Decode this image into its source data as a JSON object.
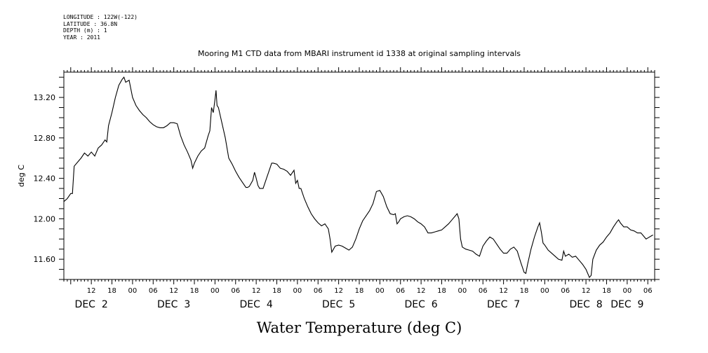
{
  "header": {
    "longitude": "LONGITUDE : 122W(-122)",
    "latitude": "LATITUDE : 36.8N",
    "depth": "DEPTH (m) : 1",
    "year": "YEAR : 2011"
  },
  "chart_data": {
    "type": "line",
    "title": "Mooring M1 CTD data from MBARI instrument id 1338 at original sampling intervals",
    "xlabel": "Water Temperature (deg C)",
    "ylabel": "deg C",
    "ylim": [
      11.4,
      13.45
    ],
    "yticks": [
      11.6,
      12.0,
      12.4,
      12.8,
      13.2
    ],
    "ytick_labels": [
      "11.60",
      "12.00",
      "12.40",
      "12.80",
      "13.20"
    ],
    "xlim_hours": [
      -20,
      152
    ],
    "hour_ticks": [
      {
        "h": -12,
        "label": "12"
      },
      {
        "h": -6,
        "label": "18"
      },
      {
        "h": 0,
        "label": "00"
      },
      {
        "h": 6,
        "label": "06"
      },
      {
        "h": 12,
        "label": "12"
      },
      {
        "h": 18,
        "label": "18"
      },
      {
        "h": 24,
        "label": "00"
      },
      {
        "h": 30,
        "label": "06"
      },
      {
        "h": 36,
        "label": "12"
      },
      {
        "h": 42,
        "label": "18"
      },
      {
        "h": 48,
        "label": "00"
      },
      {
        "h": 54,
        "label": "06"
      },
      {
        "h": 60,
        "label": "12"
      },
      {
        "h": 66,
        "label": "18"
      },
      {
        "h": 72,
        "label": "00"
      },
      {
        "h": 78,
        "label": "06"
      },
      {
        "h": 84,
        "label": "12"
      },
      {
        "h": 90,
        "label": "18"
      },
      {
        "h": 96,
        "label": "00"
      },
      {
        "h": 102,
        "label": "06"
      },
      {
        "h": 108,
        "label": "12"
      },
      {
        "h": 114,
        "label": "18"
      },
      {
        "h": 120,
        "label": "00"
      },
      {
        "h": 126,
        "label": "06"
      },
      {
        "h": 132,
        "label": "12"
      },
      {
        "h": 138,
        "label": "18"
      },
      {
        "h": 144,
        "label": "00"
      },
      {
        "h": 150,
        "label": "06"
      }
    ],
    "day_labels": [
      {
        "h": -12,
        "label": "DEC  2"
      },
      {
        "h": 12,
        "label": "DEC  3"
      },
      {
        "h": 36,
        "label": "DEC  4"
      },
      {
        "h": 60,
        "label": "DEC  5"
      },
      {
        "h": 84,
        "label": "DEC  6"
      },
      {
        "h": 108,
        "label": "DEC  7"
      },
      {
        "h": 132,
        "label": "DEC  8"
      },
      {
        "h": 144,
        "label": "DEC  9"
      }
    ],
    "series": [
      {
        "color": "#000000",
        "points": [
          [
            -20.0,
            12.17
          ],
          [
            -19.0,
            12.2
          ],
          [
            -18.0,
            12.25
          ],
          [
            -17.5,
            12.25
          ],
          [
            -17.0,
            12.52
          ],
          [
            -16.0,
            12.56
          ],
          [
            -15.0,
            12.6
          ],
          [
            -14.0,
            12.65
          ],
          [
            -13.0,
            12.62
          ],
          [
            -12.0,
            12.66
          ],
          [
            -11.0,
            12.62
          ],
          [
            -10.0,
            12.7
          ],
          [
            -9.0,
            12.73
          ],
          [
            -8.0,
            12.78
          ],
          [
            -7.5,
            12.76
          ],
          [
            -7.0,
            12.92
          ],
          [
            -6.0,
            13.05
          ],
          [
            -5.0,
            13.2
          ],
          [
            -4.0,
            13.32
          ],
          [
            -3.0,
            13.38
          ],
          [
            -2.5,
            13.4
          ],
          [
            -2.0,
            13.35
          ],
          [
            -1.0,
            13.37
          ],
          [
            0.0,
            13.2
          ],
          [
            1.0,
            13.12
          ],
          [
            2.0,
            13.07
          ],
          [
            3.0,
            13.03
          ],
          [
            4.0,
            13.0
          ],
          [
            5.0,
            12.96
          ],
          [
            6.0,
            12.93
          ],
          [
            7.0,
            12.91
          ],
          [
            8.0,
            12.9
          ],
          [
            9.0,
            12.9
          ],
          [
            10.0,
            12.92
          ],
          [
            11.0,
            12.95
          ],
          [
            12.0,
            12.95
          ],
          [
            13.0,
            12.94
          ],
          [
            13.5,
            12.88
          ],
          [
            14.0,
            12.82
          ],
          [
            15.0,
            12.73
          ],
          [
            16.0,
            12.66
          ],
          [
            17.0,
            12.58
          ],
          [
            17.5,
            12.5
          ],
          [
            18.0,
            12.55
          ],
          [
            19.0,
            12.62
          ],
          [
            20.0,
            12.67
          ],
          [
            21.0,
            12.7
          ],
          [
            22.0,
            12.82
          ],
          [
            22.5,
            12.87
          ],
          [
            23.0,
            13.1
          ],
          [
            23.5,
            13.05
          ],
          [
            24.0,
            13.18
          ],
          [
            24.3,
            13.27
          ],
          [
            24.6,
            13.12
          ],
          [
            25.0,
            13.1
          ],
          [
            26.0,
            12.95
          ],
          [
            27.0,
            12.8
          ],
          [
            28.0,
            12.6
          ],
          [
            28.5,
            12.57
          ],
          [
            29.0,
            12.54
          ],
          [
            30.0,
            12.47
          ],
          [
            31.0,
            12.41
          ],
          [
            32.0,
            12.36
          ],
          [
            33.0,
            12.31
          ],
          [
            33.5,
            12.31
          ],
          [
            34.0,
            12.32
          ],
          [
            35.0,
            12.38
          ],
          [
            35.5,
            12.46
          ],
          [
            36.0,
            12.4
          ],
          [
            36.5,
            12.33
          ],
          [
            37.0,
            12.3
          ],
          [
            38.0,
            12.3
          ],
          [
            39.0,
            12.4
          ],
          [
            40.0,
            12.5
          ],
          [
            40.5,
            12.55
          ],
          [
            41.0,
            12.55
          ],
          [
            42.0,
            12.54
          ],
          [
            43.0,
            12.5
          ],
          [
            44.0,
            12.49
          ],
          [
            45.0,
            12.47
          ],
          [
            46.0,
            12.43
          ],
          [
            47.0,
            12.48
          ],
          [
            47.5,
            12.35
          ],
          [
            48.0,
            12.38
          ],
          [
            48.5,
            12.3
          ],
          [
            49.0,
            12.3
          ],
          [
            50.0,
            12.2
          ],
          [
            51.0,
            12.12
          ],
          [
            52.0,
            12.05
          ],
          [
            53.0,
            12.0
          ],
          [
            54.0,
            11.96
          ],
          [
            55.0,
            11.93
          ],
          [
            56.0,
            11.95
          ],
          [
            57.0,
            11.9
          ],
          [
            57.5,
            11.8
          ],
          [
            58.0,
            11.67
          ],
          [
            59.0,
            11.73
          ],
          [
            60.0,
            11.74
          ],
          [
            61.0,
            11.73
          ],
          [
            62.0,
            11.71
          ],
          [
            63.0,
            11.69
          ],
          [
            64.0,
            11.72
          ],
          [
            65.0,
            11.8
          ],
          [
            66.0,
            11.9
          ],
          [
            67.0,
            11.98
          ],
          [
            68.0,
            12.03
          ],
          [
            69.0,
            12.08
          ],
          [
            70.0,
            12.15
          ],
          [
            71.0,
            12.27
          ],
          [
            72.0,
            12.28
          ],
          [
            73.0,
            12.22
          ],
          [
            74.0,
            12.12
          ],
          [
            75.0,
            12.05
          ],
          [
            76.0,
            12.04
          ],
          [
            76.5,
            12.05
          ],
          [
            77.0,
            11.95
          ],
          [
            77.5,
            11.97
          ],
          [
            78.0,
            12.0
          ],
          [
            79.0,
            12.02
          ],
          [
            80.0,
            12.03
          ],
          [
            81.0,
            12.02
          ],
          [
            82.0,
            12.0
          ],
          [
            83.0,
            11.97
          ],
          [
            84.0,
            11.95
          ],
          [
            85.0,
            11.92
          ],
          [
            86.0,
            11.86
          ],
          [
            87.0,
            11.86
          ],
          [
            88.0,
            11.87
          ],
          [
            89.0,
            11.88
          ],
          [
            90.0,
            11.89
          ],
          [
            91.0,
            11.92
          ],
          [
            92.0,
            11.95
          ],
          [
            93.0,
            11.99
          ],
          [
            94.0,
            12.03
          ],
          [
            94.5,
            12.05
          ],
          [
            95.0,
            12.0
          ],
          [
            95.5,
            11.8
          ],
          [
            96.0,
            11.72
          ],
          [
            97.0,
            11.7
          ],
          [
            98.0,
            11.69
          ],
          [
            99.0,
            11.68
          ],
          [
            100.0,
            11.65
          ],
          [
            101.0,
            11.63
          ],
          [
            102.0,
            11.73
          ],
          [
            103.0,
            11.78
          ],
          [
            104.0,
            11.82
          ],
          [
            105.0,
            11.8
          ],
          [
            106.0,
            11.75
          ],
          [
            107.0,
            11.7
          ],
          [
            108.0,
            11.66
          ],
          [
            109.0,
            11.66
          ],
          [
            110.0,
            11.7
          ],
          [
            111.0,
            11.72
          ],
          [
            112.0,
            11.68
          ],
          [
            113.0,
            11.57
          ],
          [
            114.0,
            11.47
          ],
          [
            114.5,
            11.46
          ],
          [
            115.0,
            11.55
          ],
          [
            116.0,
            11.7
          ],
          [
            117.0,
            11.82
          ],
          [
            118.0,
            11.92
          ],
          [
            118.5,
            11.96
          ],
          [
            119.0,
            11.87
          ],
          [
            119.5,
            11.76
          ],
          [
            120.0,
            11.74
          ],
          [
            121.0,
            11.69
          ],
          [
            122.0,
            11.66
          ],
          [
            123.0,
            11.63
          ],
          [
            124.0,
            11.6
          ],
          [
            125.0,
            11.59
          ],
          [
            125.5,
            11.68
          ],
          [
            126.0,
            11.63
          ],
          [
            127.0,
            11.65
          ],
          [
            128.0,
            11.62
          ],
          [
            129.0,
            11.63
          ],
          [
            130.0,
            11.59
          ],
          [
            131.0,
            11.55
          ],
          [
            132.0,
            11.5
          ],
          [
            133.0,
            11.42
          ],
          [
            133.5,
            11.44
          ],
          [
            134.0,
            11.6
          ],
          [
            135.0,
            11.69
          ],
          [
            136.0,
            11.74
          ],
          [
            137.0,
            11.77
          ],
          [
            138.0,
            11.82
          ],
          [
            139.0,
            11.86
          ],
          [
            140.0,
            11.92
          ],
          [
            141.0,
            11.97
          ],
          [
            141.5,
            11.99
          ],
          [
            142.0,
            11.96
          ],
          [
            143.0,
            11.92
          ],
          [
            144.0,
            11.92
          ],
          [
            145.0,
            11.89
          ],
          [
            146.0,
            11.88
          ],
          [
            147.0,
            11.86
          ],
          [
            148.0,
            11.86
          ],
          [
            149.0,
            11.82
          ],
          [
            149.5,
            11.8
          ],
          [
            150.0,
            11.81
          ],
          [
            151.0,
            11.83
          ],
          [
            151.5,
            11.84
          ]
        ]
      }
    ]
  }
}
